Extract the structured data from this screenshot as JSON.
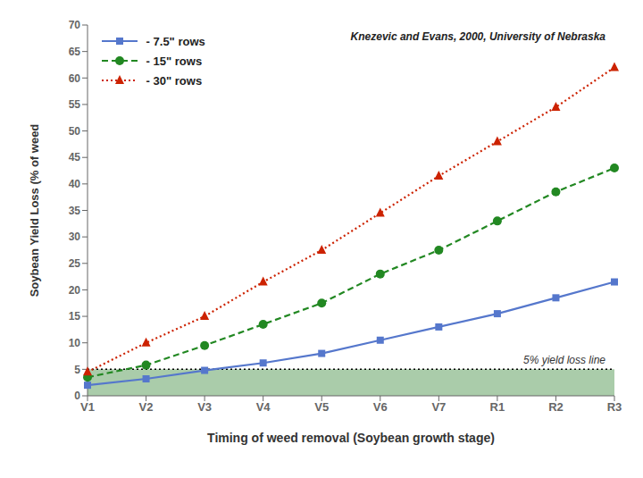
{
  "chart_data": {
    "type": "line",
    "xlabel": "Timing of weed removal (Soybean growth stage)",
    "ylabel": "Soybean Yield Loss (% of weed",
    "categories": [
      "V1",
      "V2",
      "V3",
      "V4",
      "V5",
      "V6",
      "V7",
      "R1",
      "R2",
      "R3"
    ],
    "series": [
      {
        "name": " - 7.5\" rows",
        "color": "#5577CC",
        "marker": "square",
        "line_style": "solid",
        "values": [
          2.0,
          3.2,
          4.8,
          6.2,
          8.0,
          10.5,
          13.0,
          15.5,
          18.5,
          21.5
        ]
      },
      {
        "name": " - 15\" rows",
        "color": "#228822",
        "marker": "circle",
        "line_style": "dashed",
        "values": [
          3.5,
          5.8,
          9.5,
          13.5,
          17.5,
          23.0,
          27.5,
          33.0,
          38.5,
          43.0
        ]
      },
      {
        "name": " - 30\" rows",
        "color": "#CC2200",
        "marker": "triangle",
        "line_style": "dotted",
        "values": [
          4.5,
          10.0,
          15.0,
          21.5,
          27.5,
          34.5,
          41.5,
          48.0,
          54.5,
          62.0
        ]
      }
    ],
    "ylim": [
      0,
      70
    ],
    "yticks": [
      0,
      5,
      10,
      15,
      20,
      25,
      30,
      35,
      40,
      45,
      50,
      55,
      60,
      65,
      70
    ],
    "grid": false,
    "legend": "upper left",
    "annotations": [
      "Knezevic and Evans, 2000, University of Nebraska"
    ],
    "reference_line": {
      "y": 5,
      "label": "5% yield loss line",
      "color": "#AACCAA"
    }
  }
}
